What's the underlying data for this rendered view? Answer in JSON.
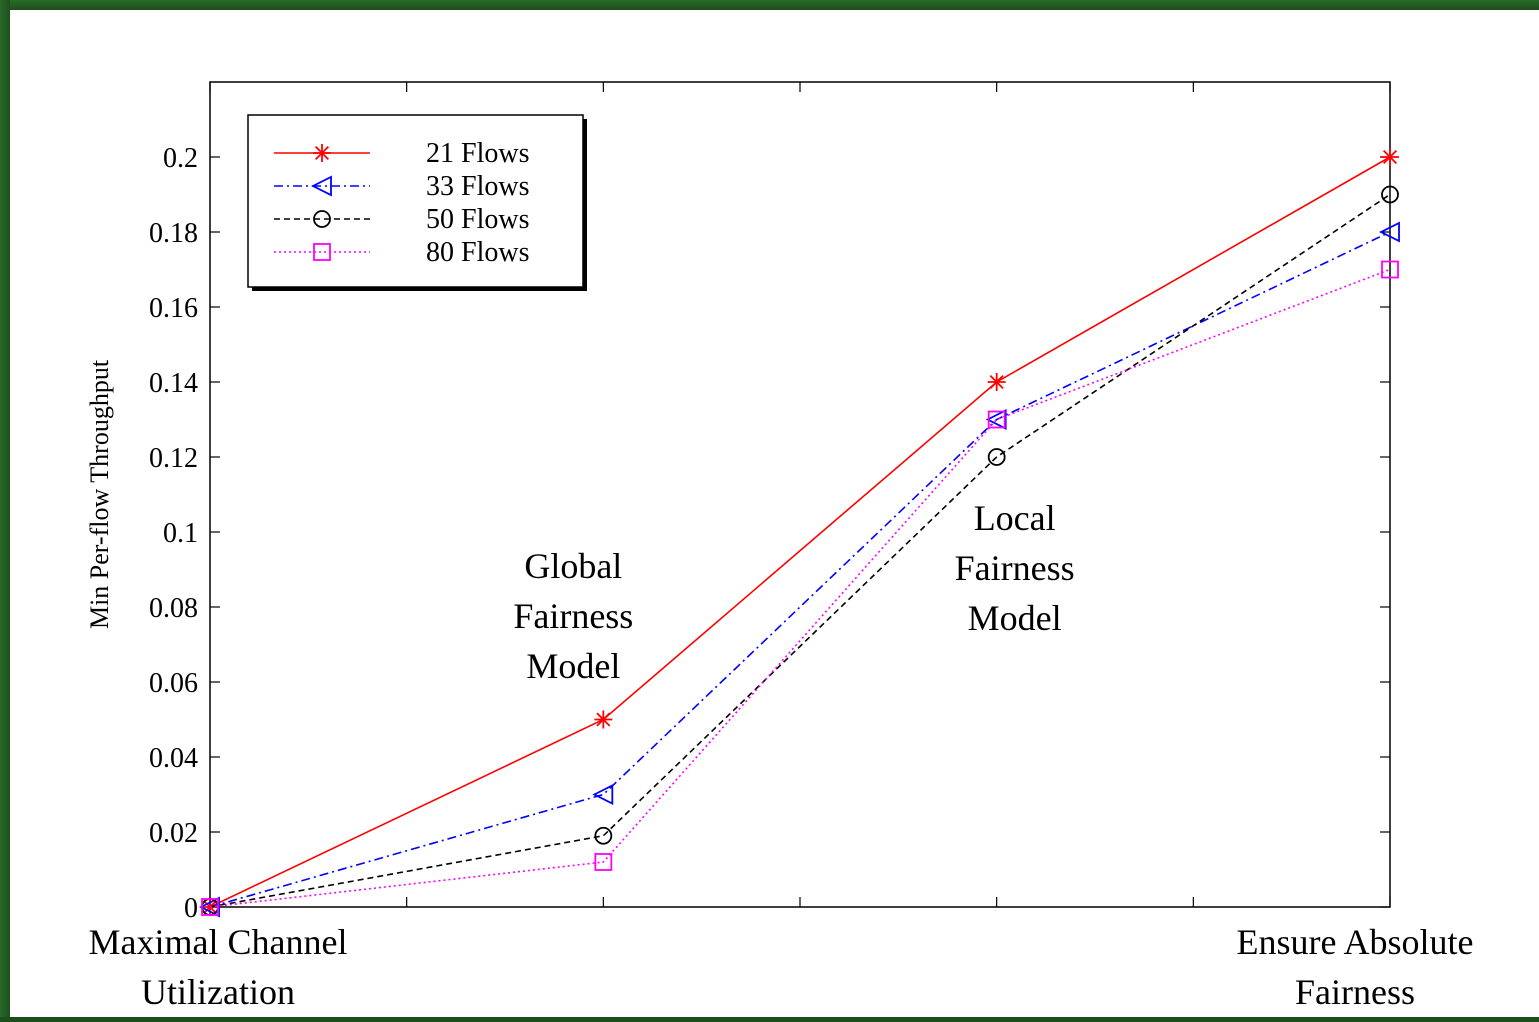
{
  "chart_data": {
    "type": "line",
    "title": "",
    "xlabel": "",
    "ylabel": "Min Per-flow Throughput",
    "ylim": [
      0,
      0.2
    ],
    "yticks": [
      "0",
      "0.02",
      "0.04",
      "0.06",
      "0.08",
      "0.1",
      "0.12",
      "0.14",
      "0.16",
      "0.18",
      "0.2"
    ],
    "x_end_labels": {
      "left": [
        "Maximal Channel",
        "Utilization"
      ],
      "right": [
        "Ensure Absolute",
        "Fairness"
      ]
    },
    "x": [
      0,
      1,
      2,
      3
    ],
    "grid": false,
    "legend_position": "top-left",
    "series": [
      {
        "name": "21 Flows",
        "values": [
          0,
          0.05,
          0.14,
          0.2
        ],
        "color": "#ff0000",
        "marker": "asterisk",
        "dash": "solid"
      },
      {
        "name": "33 Flows",
        "values": [
          0,
          0.03,
          0.13,
          0.18
        ],
        "color": "#0000ff",
        "marker": "triangle-left",
        "dash": "dashdot"
      },
      {
        "name": "50 Flows",
        "values": [
          0,
          0.019,
          0.12,
          0.19
        ],
        "color": "#000000",
        "marker": "circle",
        "dash": "dashed"
      },
      {
        "name": "80 Flows",
        "values": [
          0,
          0.012,
          0.13,
          0.17
        ],
        "color": "#ff00ff",
        "marker": "square",
        "dash": "dotted"
      }
    ],
    "annotations": [
      {
        "lines": [
          "Global",
          "Fairness",
          "Model"
        ],
        "x": 1,
        "y": 0.062
      },
      {
        "lines": [
          "Local",
          "Fairness",
          "Model"
        ],
        "x": 2,
        "y": 0.075
      }
    ]
  }
}
